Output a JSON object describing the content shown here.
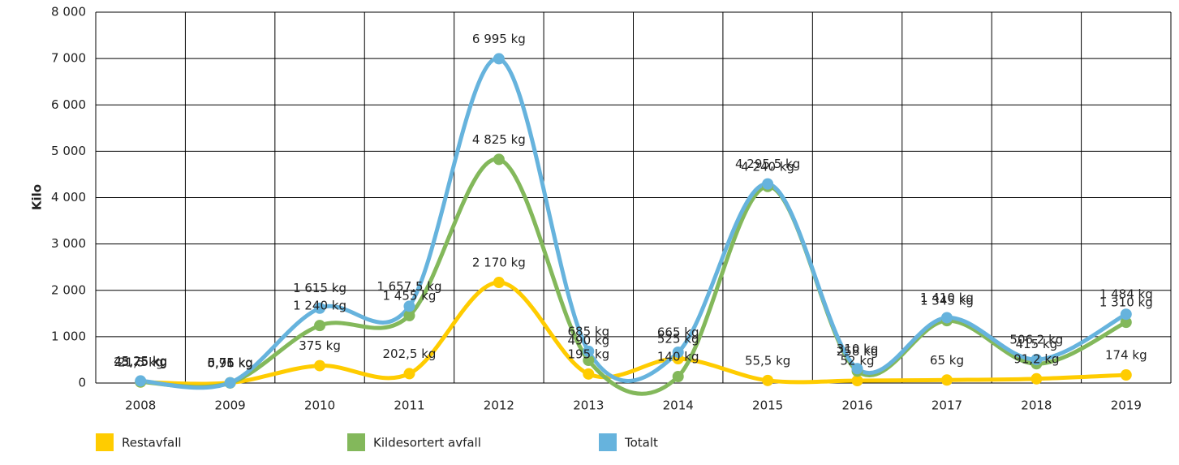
{
  "chart_data": {
    "type": "line",
    "ylabel": "Kilo",
    "categories": [
      "2008",
      "2009",
      "2010",
      "2011",
      "2012",
      "2013",
      "2014",
      "2015",
      "2016",
      "2017",
      "2018",
      "2019"
    ],
    "series": [
      {
        "name": "Restavfall",
        "color": "#ffcc00",
        "values": [
          21.5,
          5.75,
          375,
          202.5,
          2170,
          195,
          525,
          55.5,
          52,
          65,
          91.2,
          174
        ],
        "value_labels": [
          "21,5 kg",
          "5,75 kg",
          "375 kg",
          "202,5 kg",
          "2 170 kg",
          "195 kg",
          "525 kg",
          "55,5 kg",
          "52 kg",
          "65 kg",
          "91,2 kg",
          "174 kg"
        ]
      },
      {
        "name": "Kildesortert avfall",
        "color": "#83b85b",
        "values": [
          23.75,
          0.96,
          1240,
          1455,
          4825,
          490,
          140,
          4240,
          258,
          1345,
          415,
          1310
        ],
        "value_labels": [
          "23,75 kg",
          "0,96 kg",
          "1 240 kg",
          "1 455 kg",
          "4 825 kg",
          "490 kg",
          "140 kg",
          "4 240 kg",
          "258 kg",
          "1 345 kg",
          "415 kg",
          "1 310 kg"
        ]
      },
      {
        "name": "Totalt",
        "color": "#66b3dd",
        "values": [
          45.25,
          6.71,
          1615,
          1657.5,
          6995,
          685,
          665,
          4295.5,
          310,
          1410,
          506.2,
          1484
        ],
        "value_labels": [
          "45,25 kg",
          "6,71 kg",
          "1 615 kg",
          "1 657,5 kg",
          "6 995 kg",
          "685 kg",
          "665 kg",
          "4 295,5 kg",
          "310 kg",
          "1 410 kg",
          "506,2 kg",
          "1 484 kg"
        ]
      }
    ],
    "ylim": [
      0,
      8000
    ],
    "yticks": [
      0,
      {
        "value": 1000,
        "label": "1 000"
      },
      {
        "value": 2000,
        "label": "2 000"
      },
      {
        "value": 3000,
        "label": "3 000"
      },
      {
        "value": 4000,
        "label": "4 000"
      },
      {
        "value": 5000,
        "label": "5 000"
      },
      {
        "value": 6000,
        "label": "6 000"
      },
      {
        "value": 7000,
        "label": "7 000"
      },
      {
        "value": 8000,
        "label": "8 000"
      }
    ],
    "grid": true,
    "legend": "bottom"
  }
}
